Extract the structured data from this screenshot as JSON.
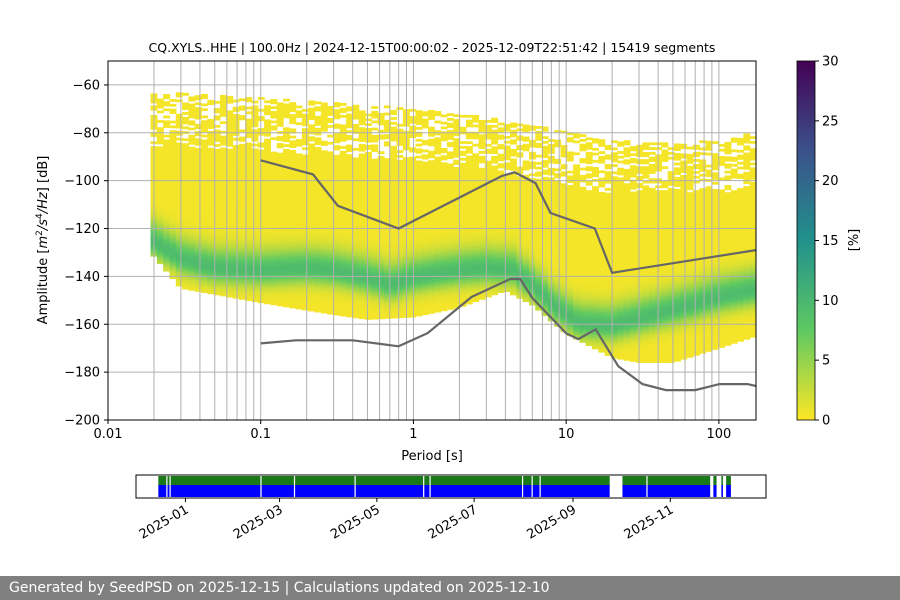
{
  "chart_data": [
    {
      "type": "heatmap",
      "title": "CQ.XYLS..HHE | 100.0Hz | 2024-12-15T00:00:02 - 2025-12-09T22:51:42 | 15419 segments",
      "xlabel": "Period [s]",
      "ylabel_parts": [
        "Amplitude [",
        "m",
        "2",
        "/",
        "s",
        "4",
        "/",
        "Hz",
        "] [dB]"
      ],
      "xscale": "log",
      "xlim": [
        0.01,
        175
      ],
      "ylim": [
        -200,
        -50
      ],
      "xticks": [
        0.01,
        0.1,
        1,
        10,
        100
      ],
      "xtick_labels": [
        "0.01",
        "0.1",
        "1",
        "10",
        "100"
      ],
      "yticks": [
        -200,
        -180,
        -160,
        -140,
        -120,
        -100,
        -80,
        -60
      ],
      "ytick_labels": [
        "−200",
        "−180",
        "−160",
        "−140",
        "−120",
        "−100",
        "−80",
        "−60"
      ],
      "grid_periods": [
        0.02,
        0.03,
        0.04,
        0.05,
        0.06,
        0.07,
        0.08,
        0.09,
        0.1,
        0.2,
        0.3,
        0.4,
        0.5,
        0.6,
        0.7,
        0.8,
        0.9,
        1,
        2,
        3,
        4,
        5,
        6,
        7,
        8,
        9,
        10,
        20,
        30,
        40,
        50,
        60,
        70,
        80,
        90,
        100
      ],
      "grid": true,
      "colorbar": {
        "label": "[%]",
        "range": [
          0,
          30
        ],
        "ticks": [
          0,
          5,
          10,
          15,
          20,
          25,
          30
        ],
        "colormap": [
          "#fde725",
          "#5ec962",
          "#21918c",
          "#3b528b",
          "#440154"
        ]
      },
      "density": {
        "period_range": [
          0.019,
          175
        ],
        "envelope_upper": [
          [
            0.019,
            -64
          ],
          [
            0.03,
            -64
          ],
          [
            0.1,
            -66
          ],
          [
            0.3,
            -68
          ],
          [
            1,
            -70
          ],
          [
            3,
            -74
          ],
          [
            10,
            -80
          ],
          [
            20,
            -84
          ],
          [
            50,
            -84
          ],
          [
            100,
            -84
          ],
          [
            175,
            -80
          ]
        ],
        "envelope_lower": [
          [
            0.019,
            -130
          ],
          [
            0.03,
            -145
          ],
          [
            0.1,
            -151
          ],
          [
            0.3,
            -156
          ],
          [
            0.5,
            -158
          ],
          [
            1,
            -157
          ],
          [
            2,
            -153
          ],
          [
            4,
            -146
          ],
          [
            6,
            -152
          ],
          [
            10,
            -164
          ],
          [
            20,
            -174
          ],
          [
            30,
            -176
          ],
          [
            50,
            -176
          ],
          [
            100,
            -170
          ],
          [
            175,
            -165
          ]
        ],
        "mode_curve": [
          [
            0.019,
            -125
          ],
          [
            0.025,
            -130
          ],
          [
            0.03,
            -133
          ],
          [
            0.05,
            -137
          ],
          [
            0.1,
            -138
          ],
          [
            0.2,
            -137
          ],
          [
            0.3,
            -138
          ],
          [
            0.5,
            -141
          ],
          [
            0.7,
            -144
          ],
          [
            1,
            -141
          ],
          [
            1.5,
            -139
          ],
          [
            2,
            -138
          ],
          [
            3,
            -137
          ],
          [
            4.5,
            -138
          ],
          [
            6,
            -144
          ],
          [
            8,
            -152
          ],
          [
            12,
            -160
          ],
          [
            20,
            -161
          ],
          [
            40,
            -156
          ],
          [
            70,
            -152
          ],
          [
            100,
            -149
          ],
          [
            175,
            -146
          ]
        ]
      },
      "nlnm": {
        "x": [
          0.1,
          0.17,
          0.4,
          0.8,
          1.24,
          2.4,
          4.3,
          5,
          6,
          10,
          12,
          15.6,
          21.9,
          31.6,
          45,
          70,
          101,
          154,
          175
        ],
        "y": [
          -168,
          -166.7,
          -166.7,
          -169.2,
          -163.7,
          -148.6,
          -141.1,
          -141.1,
          -149,
          -163.8,
          -166.2,
          -162.1,
          -177.5,
          -185,
          -187.5,
          -187.5,
          -185,
          -185,
          -185.8
        ]
      },
      "nhnm": {
        "x": [
          0.1,
          0.22,
          0.32,
          0.8,
          3.8,
          4.6,
          6.3,
          7.9,
          15.4,
          20,
          175
        ],
        "y": [
          -91.5,
          -97.4,
          -110.5,
          -120,
          -98,
          -96.5,
          -101,
          -113.5,
          -120,
          -138.5,
          -129
        ]
      }
    },
    {
      "type": "timeline",
      "x_range": [
        "2024-12-01",
        "2025-12-31"
      ],
      "xtick_labels": [
        "2025-01",
        "2025-03",
        "2025-05",
        "2025-07",
        "2025-09",
        "2025-11"
      ],
      "xtick_dates": [
        "2025-01-01",
        "2025-03-01",
        "2025-05-01",
        "2025-07-01",
        "2025-09-01",
        "2025-11-01"
      ],
      "colors": {
        "data": "#1a7a1a",
        "processed": "#0000ff"
      },
      "data_segments": [
        [
          "2024-12-15",
          "2025-09-24"
        ],
        [
          "2025-10-02",
          "2025-11-26"
        ],
        [
          "2025-11-28",
          "2025-11-30"
        ],
        [
          "2025-12-03",
          "2025-12-04"
        ],
        [
          "2025-12-06",
          "2025-12-09"
        ]
      ],
      "gaps": [
        "2024-12-20",
        "2024-12-22",
        "2025-02-17",
        "2025-03-10",
        "2025-04-17",
        "2025-05-30",
        "2025-06-03",
        "2025-07-31",
        "2025-08-06",
        "2025-08-11",
        "2025-10-17"
      ]
    }
  ],
  "footer": {
    "text": "Generated by SeedPSD on 2025-12-15 | Calculations updated on 2025-12-10"
  }
}
